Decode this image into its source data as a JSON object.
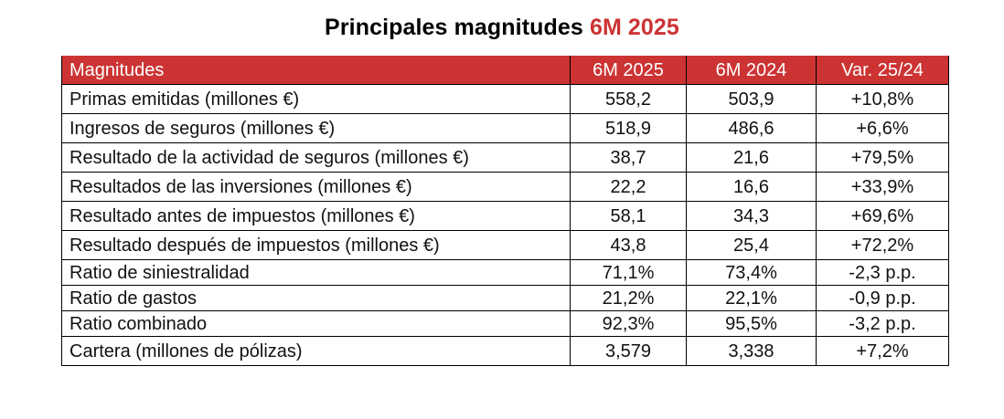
{
  "title": {
    "main": "Principales magnitudes ",
    "accent": "6M 2025"
  },
  "colors": {
    "accent": "#cc3333",
    "header_text": "#ffffff",
    "border": "#000000"
  },
  "table": {
    "headers": [
      "Magnitudes",
      "6M 2025",
      "6M 2024",
      "Var. 25/24"
    ],
    "rows": [
      {
        "label": "Primas emitidas (millones €)",
        "v2025": "558,2",
        "v2024": "503,9",
        "var": "+10,8%"
      },
      {
        "label": "Ingresos de seguros (millones €)",
        "v2025": "518,9",
        "v2024": "486,6",
        "var": "+6,6%"
      },
      {
        "label": "Resultado de la actividad de seguros (millones €)",
        "v2025": "38,7",
        "v2024": "21,6",
        "var": "+79,5%"
      },
      {
        "label": "Resultados de las inversiones (millones €)",
        "v2025": "22,2",
        "v2024": "16,6",
        "var": "+33,9%"
      },
      {
        "label": "Resultado antes de impuestos (millones €)",
        "v2025": "58,1",
        "v2024": "34,3",
        "var": "+69,6%"
      },
      {
        "label": "Resultado después de impuestos (millones €)",
        "v2025": "43,8",
        "v2024": "25,4",
        "var": "+72,2%"
      },
      {
        "label": "Ratio de siniestralidad",
        "v2025": "71,1%",
        "v2024": "73,4%",
        "var": "-2,3 p.p."
      },
      {
        "label": "Ratio de gastos",
        "v2025": "21,2%",
        "v2024": "22,1%",
        "var": "-0,9 p.p."
      },
      {
        "label": "Ratio combinado",
        "v2025": "92,3%",
        "v2024": "95,5%",
        "var": "-3,2 p.p."
      },
      {
        "label": "Cartera (millones de pólizas)",
        "v2025": "3,579",
        "v2024": "3,338",
        "var": "+7,2%"
      }
    ]
  }
}
